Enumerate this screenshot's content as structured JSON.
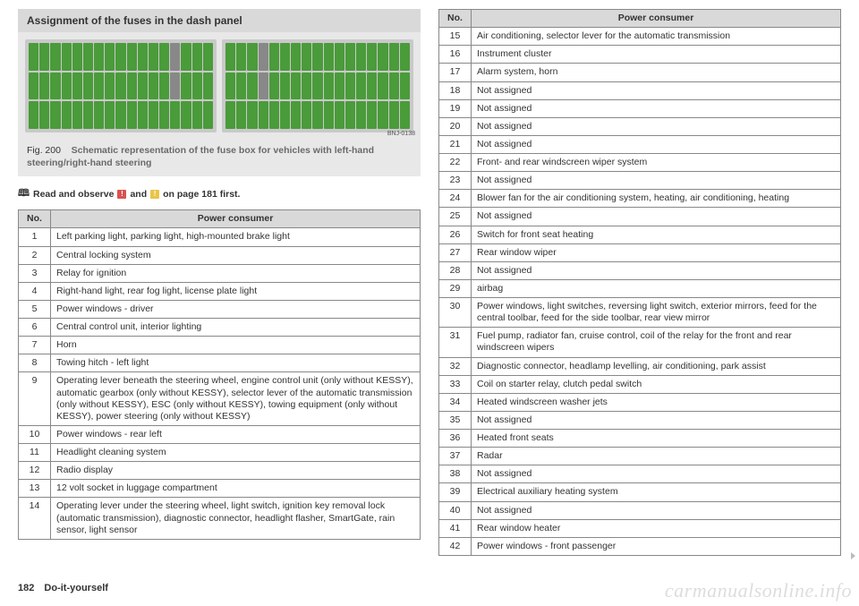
{
  "left": {
    "title": "Assignment of the fuses in the dash panel",
    "img_code": "BNJ-0138",
    "fig_num": "Fig. 200",
    "fig_text": "Schematic representation of the fuse box for vehicles with left-hand steering/right-hand steering",
    "read_prefix": "Read and observe",
    "read_mid": "and",
    "read_suffix": "on page 181 first.",
    "th_no": "No.",
    "th_pc": "Power consumer",
    "rows": [
      {
        "no": "1",
        "pc": "Left parking light, parking light, high-mounted brake light"
      },
      {
        "no": "2",
        "pc": "Central locking system"
      },
      {
        "no": "3",
        "pc": "Relay for ignition"
      },
      {
        "no": "4",
        "pc": "Right-hand light, rear fog light, license plate light"
      },
      {
        "no": "5",
        "pc": "Power windows - driver"
      },
      {
        "no": "6",
        "pc": "Central control unit, interior lighting"
      },
      {
        "no": "7",
        "pc": "Horn"
      },
      {
        "no": "8",
        "pc": "Towing hitch - left light"
      },
      {
        "no": "9",
        "pc": "Operating lever beneath the steering wheel, engine control unit (only without KESSY), automatic gearbox (only without KESSY), selector lever of the automatic transmission (only without KESSY), ESC (only without KESSY), towing equipment (only without KESSY), power steering (only without KESSY)"
      },
      {
        "no": "10",
        "pc": "Power windows - rear left"
      },
      {
        "no": "11",
        "pc": "Headlight cleaning system"
      },
      {
        "no": "12",
        "pc": "Radio display"
      },
      {
        "no": "13",
        "pc": "12 volt socket in luggage compartment"
      },
      {
        "no": "14",
        "pc": "Operating lever under the steering wheel, light switch, ignition key removal lock (automatic transmission), diagnostic connector, headlight flasher, SmartGate, rain sensor, light sensor"
      }
    ]
  },
  "right": {
    "th_no": "No.",
    "th_pc": "Power consumer",
    "rows": [
      {
        "no": "15",
        "pc": "Air conditioning, selector lever for the automatic transmission"
      },
      {
        "no": "16",
        "pc": "Instrument cluster"
      },
      {
        "no": "17",
        "pc": "Alarm system, horn"
      },
      {
        "no": "18",
        "pc": "Not assigned"
      },
      {
        "no": "19",
        "pc": "Not assigned"
      },
      {
        "no": "20",
        "pc": "Not assigned"
      },
      {
        "no": "21",
        "pc": "Not assigned"
      },
      {
        "no": "22",
        "pc": "Front- and rear windscreen wiper system"
      },
      {
        "no": "23",
        "pc": "Not assigned"
      },
      {
        "no": "24",
        "pc": "Blower fan for the air conditioning system, heating, air conditioning, heating"
      },
      {
        "no": "25",
        "pc": "Not assigned"
      },
      {
        "no": "26",
        "pc": "Switch for front seat heating"
      },
      {
        "no": "27",
        "pc": "Rear window wiper"
      },
      {
        "no": "28",
        "pc": "Not assigned"
      },
      {
        "no": "29",
        "pc": "airbag"
      },
      {
        "no": "30",
        "pc": "Power windows, light switches, reversing light switch, exterior mirrors, feed for the central toolbar, feed for the side toolbar, rear view mirror"
      },
      {
        "no": "31",
        "pc": "Fuel pump, radiator fan, cruise control, coil of the relay for the front and rear windscreen wipers"
      },
      {
        "no": "32",
        "pc": "Diagnostic connector, headlamp levelling, air conditioning, park assist"
      },
      {
        "no": "33",
        "pc": "Coil on starter relay, clutch pedal switch"
      },
      {
        "no": "34",
        "pc": "Heated windscreen washer jets"
      },
      {
        "no": "35",
        "pc": "Not assigned"
      },
      {
        "no": "36",
        "pc": "Heated front seats"
      },
      {
        "no": "37",
        "pc": "Radar"
      },
      {
        "no": "38",
        "pc": "Not assigned"
      },
      {
        "no": "39",
        "pc": "Electrical auxiliary heating system"
      },
      {
        "no": "40",
        "pc": "Not assigned"
      },
      {
        "no": "41",
        "pc": "Rear window heater"
      },
      {
        "no": "42",
        "pc": "Power windows - front passenger"
      }
    ]
  },
  "footer": {
    "page_num": "182",
    "section": "Do-it-yourself"
  },
  "watermark": "carmanualsonline.info"
}
